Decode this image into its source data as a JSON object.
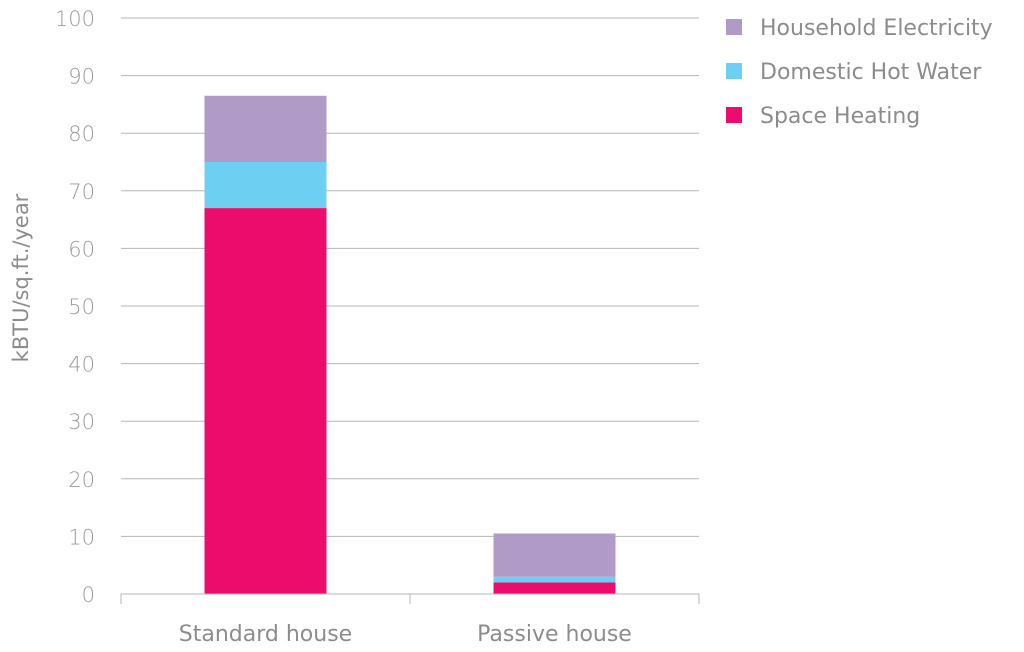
{
  "chart_data": {
    "type": "bar",
    "stacked": true,
    "categories": [
      "Standard house",
      "Passive house"
    ],
    "series": [
      {
        "name": "Space Heating",
        "values": [
          67,
          2
        ],
        "color": "#ec0c6c"
      },
      {
        "name": "Domestic Hot Water",
        "values": [
          8,
          1
        ],
        "color": "#6dd0f3"
      },
      {
        "name": "Household Electricity",
        "values": [
          11.5,
          7.5
        ],
        "color": "#b09ac8"
      }
    ],
    "title": "",
    "xlabel": "",
    "ylabel": "kBTU/sq.ft./year",
    "ylim": [
      0,
      100
    ],
    "yticks": [
      0,
      10,
      20,
      30,
      40,
      50,
      60,
      70,
      80,
      90,
      100
    ],
    "grid": true,
    "legend_position": "top-right",
    "legend_order": [
      "Household Electricity",
      "Domestic Hot Water",
      "Space Heating"
    ]
  }
}
